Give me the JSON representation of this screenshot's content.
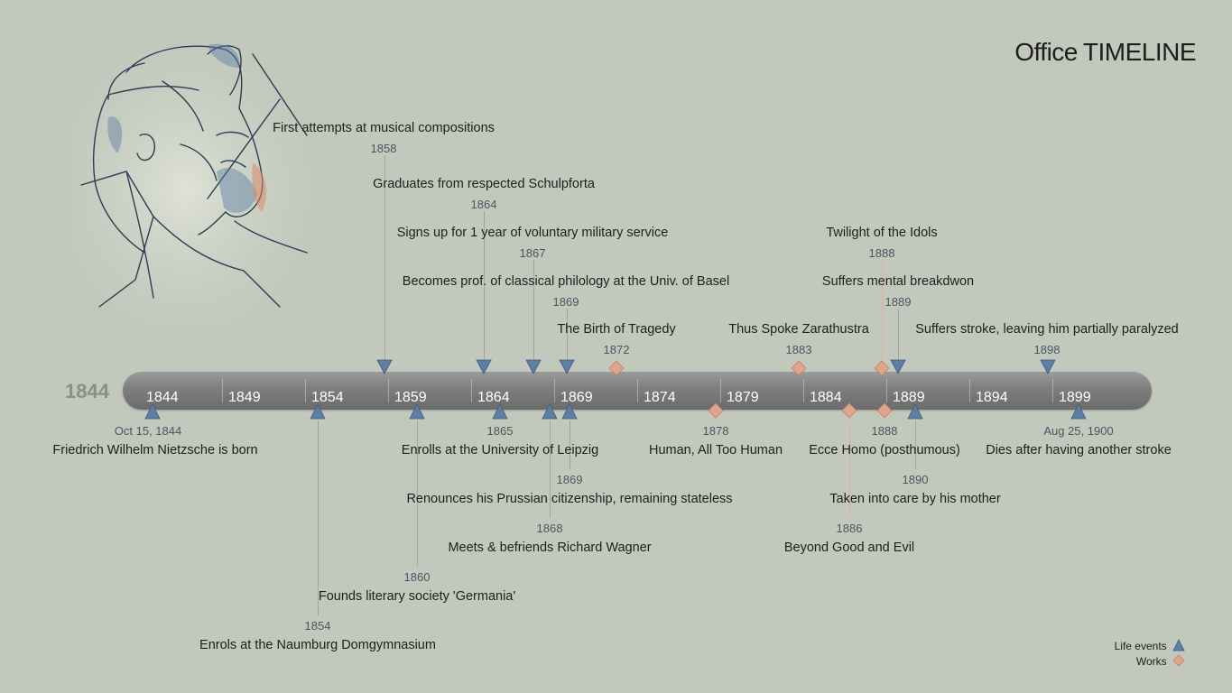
{
  "brand": {
    "part1": "Office",
    "part2": "TIMELINE"
  },
  "timeline": {
    "start_year": "1844",
    "ticks": [
      "1844",
      "1849",
      "1854",
      "1859",
      "1864",
      "1869",
      "1874",
      "1879",
      "1884",
      "1889",
      "1894",
      "1899"
    ]
  },
  "events": [
    {
      "kind": "life",
      "label": "First attempts at musical compositions",
      "date": "1858"
    },
    {
      "kind": "life",
      "label": "Graduates from respected Schulpforta",
      "date": "1864"
    },
    {
      "kind": "life",
      "label": "Signs up for 1 year of voluntary military service",
      "date": "1867"
    },
    {
      "kind": "life",
      "label": "Becomes prof. of classical philology at the Univ. of Basel",
      "date": "1869"
    },
    {
      "kind": "work",
      "label": "The Birth of Tragedy",
      "date": "1872"
    },
    {
      "kind": "work",
      "label": "Thus Spoke Zarathustra",
      "date": "1883"
    },
    {
      "kind": "work",
      "label": "Twilight of the Idols",
      "date": "1888"
    },
    {
      "kind": "life",
      "label": "Suffers mental breakdwon",
      "date": "1889"
    },
    {
      "kind": "life",
      "label": "Suffers stroke, leaving him partially paralyzed",
      "date": "1898"
    },
    {
      "kind": "life",
      "label": "Friedrich Wilhelm Nietzsche is born",
      "date": "Oct 15, 1844"
    },
    {
      "kind": "life",
      "label": "Enrols at the Naumburg Domgymnasium",
      "date": "1854"
    },
    {
      "kind": "life",
      "label": "Founds literary society 'Germania'",
      "date": "1860"
    },
    {
      "kind": "life",
      "label": "Enrolls at the University of Leipzig",
      "date": "1865"
    },
    {
      "kind": "life",
      "label": "Meets & befriends Richard Wagner",
      "date": "1868"
    },
    {
      "kind": "life",
      "label": "Renounces his Prussian citizenship, remaining stateless",
      "date": "1869"
    },
    {
      "kind": "work",
      "label": "Human, All Too Human",
      "date": "1878"
    },
    {
      "kind": "work",
      "label": "Beyond Good and Evil",
      "date": "1886"
    },
    {
      "kind": "work",
      "label": "Ecce Homo (posthumous)",
      "date": "1888"
    },
    {
      "kind": "life",
      "label": "Taken into care by his mother",
      "date": "1890"
    },
    {
      "kind": "life",
      "label": "Dies after having another stroke",
      "date": "Aug 25, 1900"
    }
  ],
  "legend": {
    "life": "Life events",
    "works": "Works"
  },
  "colors": {
    "life": "#5e7fa3",
    "work": "#e0a38b",
    "bar": "#7e7e7e",
    "background": "#c2c9bc"
  },
  "icons": {
    "life": "triangle-icon",
    "work": "diamond-icon",
    "portrait": "nietzsche-sketch"
  }
}
